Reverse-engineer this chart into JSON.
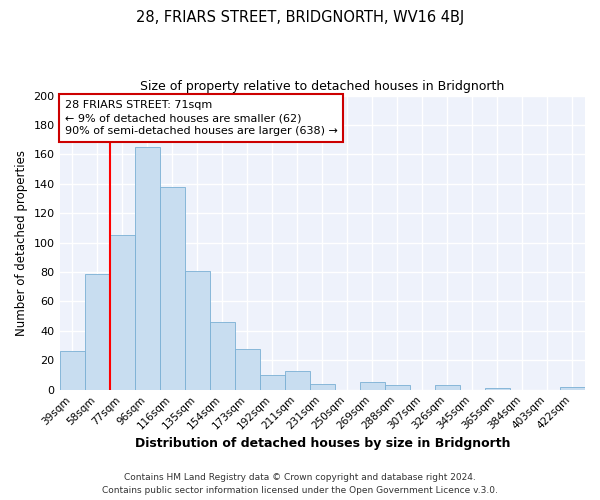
{
  "title": "28, FRIARS STREET, BRIDGNORTH, WV16 4BJ",
  "subtitle": "Size of property relative to detached houses in Bridgnorth",
  "xlabel": "Distribution of detached houses by size in Bridgnorth",
  "ylabel": "Number of detached properties",
  "bar_color": "#c8ddf0",
  "bar_edge_color": "#7aafd4",
  "background_color": "#eef2fb",
  "grid_color": "#ffffff",
  "categories": [
    "39sqm",
    "58sqm",
    "77sqm",
    "96sqm",
    "116sqm",
    "135sqm",
    "154sqm",
    "173sqm",
    "192sqm",
    "211sqm",
    "231sqm",
    "250sqm",
    "269sqm",
    "288sqm",
    "307sqm",
    "326sqm",
    "345sqm",
    "365sqm",
    "384sqm",
    "403sqm",
    "422sqm"
  ],
  "values": [
    26,
    79,
    105,
    165,
    138,
    81,
    46,
    28,
    10,
    13,
    4,
    0,
    5,
    3,
    0,
    3,
    0,
    1,
    0,
    0,
    2
  ],
  "ylim": [
    0,
    200
  ],
  "yticks": [
    0,
    20,
    40,
    60,
    80,
    100,
    120,
    140,
    160,
    180,
    200
  ],
  "redline_index": 2,
  "annotation_line1": "28 FRIARS STREET: 71sqm",
  "annotation_line2": "← 9% of detached houses are smaller (62)",
  "annotation_line3": "90% of semi-detached houses are larger (638) →",
  "annotation_box_color": "#ffffff",
  "annotation_box_edge": "#cc0000",
  "footer_line1": "Contains HM Land Registry data © Crown copyright and database right 2024.",
  "footer_line2": "Contains public sector information licensed under the Open Government Licence v.3.0."
}
